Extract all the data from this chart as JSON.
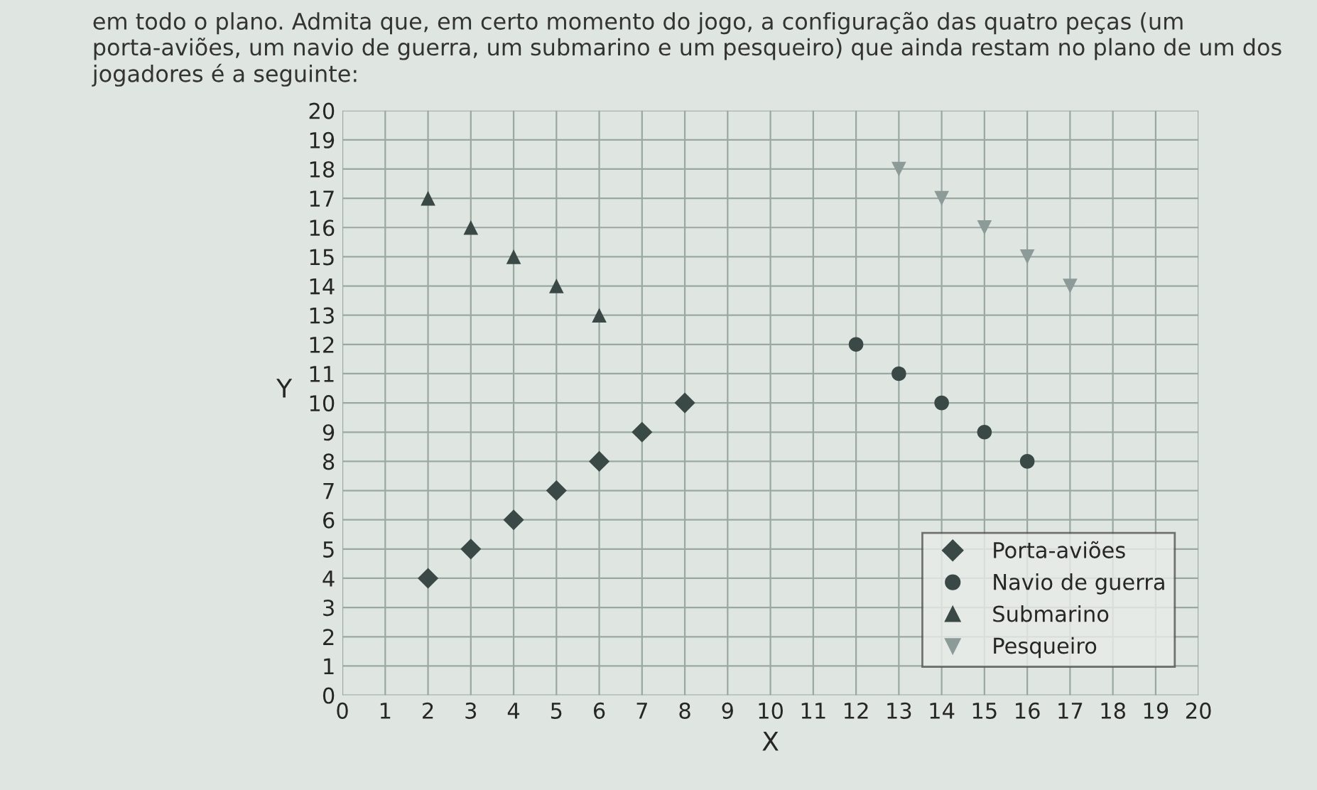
{
  "chart_data": {
    "type": "scatter",
    "title": "em todo o plano. Admita que, em certo momento do jogo, a configuração das quatro peças (um porta-aviões, um navio de guerra, um submarino e um pesqueiro) que ainda restam no plano de um dos jogadores é a seguinte:",
    "xlabel": "X",
    "ylabel": "Y",
    "series": [
      {
        "name": "Porta-aviões",
        "color": "#3a4846",
        "marker": "diamond",
        "x": [
          2,
          3,
          4,
          5,
          6,
          7,
          8
        ],
        "values": [
          4,
          5,
          6,
          7,
          8,
          9,
          10
        ]
      },
      {
        "name": "Navio de guerra",
        "color": "#3a4846",
        "marker": "circle",
        "x": [
          12,
          13,
          14,
          15,
          16
        ],
        "values": [
          12,
          11,
          10,
          9,
          8
        ]
      },
      {
        "name": "Submarino",
        "color": "#3a4846",
        "marker": "triangle",
        "x": [
          2,
          3,
          4,
          5,
          6
        ],
        "values": [
          17,
          16,
          15,
          14,
          13
        ]
      },
      {
        "name": "Pesqueiro",
        "color": "#8c9a98",
        "marker": "triangle-down",
        "x": [
          13,
          14,
          15,
          16,
          17
        ],
        "values": [
          18,
          17,
          16,
          15,
          14
        ]
      }
    ],
    "xlim": [
      0,
      20
    ],
    "ylim": [
      0,
      20
    ],
    "xticks": [
      0,
      1,
      2,
      3,
      4,
      5,
      6,
      7,
      8,
      9,
      10,
      11,
      12,
      13,
      14,
      15,
      16,
      17,
      18,
      19,
      20
    ],
    "yticks": [
      0,
      1,
      2,
      3,
      4,
      5,
      6,
      7,
      8,
      9,
      10,
      11,
      12,
      13,
      14,
      15,
      16,
      17,
      18,
      19,
      20
    ],
    "grid": true,
    "legend": "bottom right"
  }
}
